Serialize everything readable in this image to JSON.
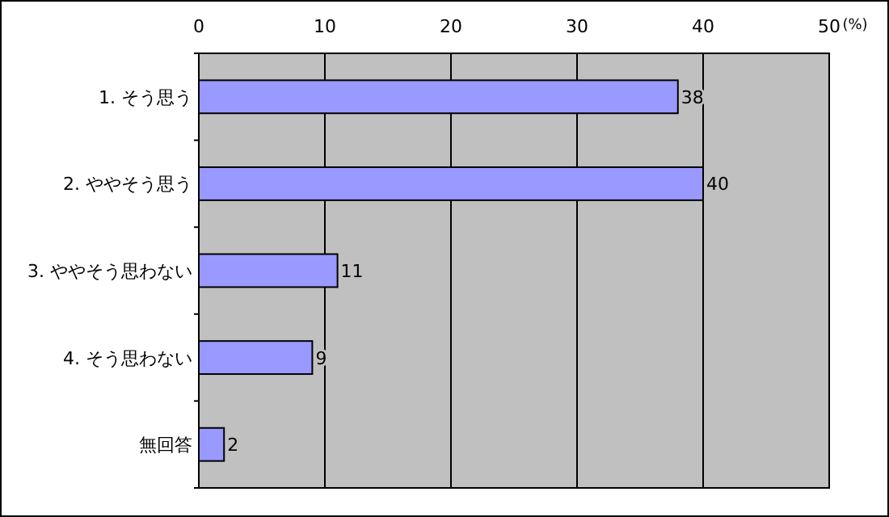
{
  "chart_data": {
    "type": "bar",
    "orientation": "horizontal",
    "categories": [
      "1. そう思う",
      "2. ややそう思う",
      "3. ややそう思わない",
      "4. そう思わない",
      "無回答"
    ],
    "values": [
      38,
      40,
      11,
      9,
      2
    ],
    "color": "#9999ff",
    "xlim": [
      0,
      50
    ],
    "xticks": [
      0,
      10,
      20,
      30,
      40,
      50
    ],
    "grid": "x",
    "data_labels": true,
    "annotations": [
      "(%)"
    ]
  }
}
